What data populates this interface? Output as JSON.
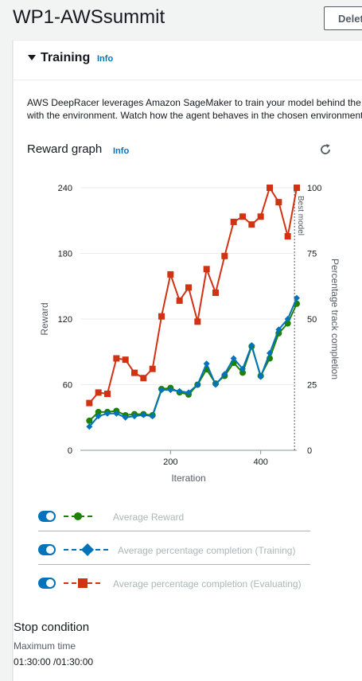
{
  "header": {
    "title": "WP1-AWSsummit",
    "delete_label": "Delete"
  },
  "training": {
    "title": "Training",
    "info": "Info",
    "description_line1": "AWS DeepRacer leverages Amazon SageMaker to train your model behind the scenes",
    "description_line2": "with the environment. Watch how the agent behaves in the chosen environment"
  },
  "reward_graph": {
    "title": "Reward graph",
    "info": "Info",
    "refresh_icon": "refresh-icon"
  },
  "legend": [
    {
      "label": "Average Reward",
      "color": "#1d8102",
      "marker": "circle",
      "enabled": true
    },
    {
      "label": "Average percentage completion (Training)",
      "color": "#0073bb",
      "marker": "diamond",
      "enabled": true
    },
    {
      "label": "Average percentage completion (Evaluating)",
      "color": "#d13212",
      "marker": "square",
      "enabled": true
    }
  ],
  "chart_data": {
    "type": "line",
    "xlabel": "Iteration",
    "ylabel": "Reward",
    "y2label": "Percentage track completion",
    "xlim": [
      0,
      480
    ],
    "ylim": [
      0,
      240
    ],
    "y2lim": [
      0,
      100
    ],
    "x_ticks": [
      200,
      400
    ],
    "y_ticks": [
      0,
      60,
      120,
      180,
      240
    ],
    "y2_ticks": [
      0,
      25,
      50,
      75,
      100
    ],
    "annotation": {
      "label": "Best model",
      "x": 475
    },
    "series": [
      {
        "name": "Average Reward",
        "axis": "left",
        "color": "#1d8102",
        "x": [
          20,
          40,
          60,
          80,
          100,
          120,
          140,
          160,
          180,
          200,
          220,
          240,
          260,
          280,
          300,
          320,
          340,
          360,
          380,
          400,
          420,
          440,
          460,
          480
        ],
        "y": [
          27,
          35,
          35,
          36,
          32,
          33,
          33,
          32,
          56,
          57,
          53,
          51,
          60,
          74,
          61,
          68,
          80,
          71,
          95,
          68,
          84,
          107,
          116,
          134
        ]
      },
      {
        "name": "Average percentage completion (Training)",
        "axis": "right",
        "color": "#0073bb",
        "x": [
          20,
          40,
          60,
          80,
          100,
          120,
          140,
          160,
          180,
          200,
          220,
          240,
          260,
          280,
          300,
          320,
          340,
          360,
          380,
          400,
          420,
          440,
          460,
          480
        ],
        "y": [
          9,
          13,
          14,
          14,
          12.5,
          13,
          13.5,
          13,
          23,
          23,
          22.5,
          22,
          25,
          33,
          25,
          29,
          35,
          31,
          40,
          28,
          37,
          46,
          50,
          58
        ]
      },
      {
        "name": "Average percentage completion (Evaluating)",
        "axis": "right",
        "color": "#d13212",
        "x": [
          20,
          40,
          60,
          80,
          100,
          120,
          140,
          160,
          180,
          200,
          220,
          240,
          260,
          280,
          300,
          320,
          340,
          360,
          380,
          400,
          420,
          440,
          460,
          480
        ],
        "y": [
          18,
          22,
          21.5,
          35,
          34.5,
          29.5,
          27.5,
          31,
          51,
          67,
          57,
          62,
          49,
          69,
          60,
          74,
          87,
          89,
          86,
          89,
          100,
          94.5,
          81.5,
          100
        ]
      }
    ]
  },
  "stop_condition": {
    "title": "Stop condition",
    "label": "Maximum time",
    "value": "01:30:00 /01:30:00"
  }
}
